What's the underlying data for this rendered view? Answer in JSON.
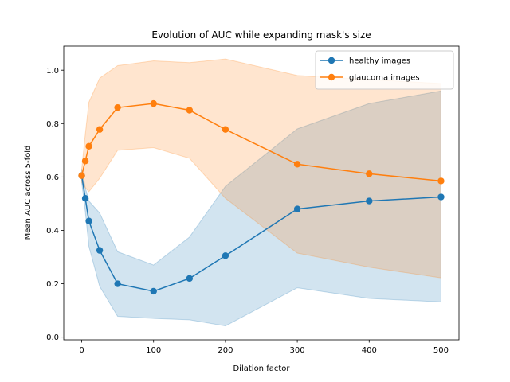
{
  "chart_data": {
    "type": "line",
    "title": "Evolution of AUC while expanding mask's size",
    "xlabel": "Dilation factor",
    "ylabel": "Mean AUC across 5-fold",
    "xlim": [
      -25,
      525
    ],
    "ylim": [
      -0.01,
      1.09
    ],
    "xticks": [
      0,
      100,
      200,
      300,
      400,
      500
    ],
    "yticks": [
      0.0,
      0.2,
      0.4,
      0.6,
      0.8,
      1.0
    ],
    "xtick_labels": [
      "0",
      "100",
      "200",
      "300",
      "400",
      "500"
    ],
    "ytick_labels": [
      "0.0",
      "0.2",
      "0.4",
      "0.6",
      "0.8",
      "1.0"
    ],
    "grid": false,
    "legend_position": "top-right",
    "x": [
      0,
      5,
      10,
      25,
      50,
      100,
      150,
      200,
      300,
      400,
      500
    ],
    "series": [
      {
        "name": "healthy images",
        "color": "#1f77b4",
        "values": [
          0.605,
          0.52,
          0.435,
          0.325,
          0.2,
          0.172,
          0.22,
          0.305,
          0.48,
          0.51,
          0.525
        ],
        "lower": [
          0.58,
          0.47,
          0.34,
          0.19,
          0.078,
          0.07,
          0.065,
          0.042,
          0.185,
          0.145,
          0.132
        ],
        "upper": [
          0.63,
          0.56,
          0.51,
          0.465,
          0.32,
          0.27,
          0.375,
          0.565,
          0.78,
          0.875,
          0.922
        ]
      },
      {
        "name": "glaucoma images",
        "color": "#ff7f0e",
        "values": [
          0.605,
          0.66,
          0.715,
          0.778,
          0.86,
          0.875,
          0.85,
          0.778,
          0.648,
          0.612,
          0.585
        ],
        "lower": [
          0.58,
          0.56,
          0.545,
          0.595,
          0.7,
          0.71,
          0.67,
          0.52,
          0.315,
          0.262,
          0.222
        ],
        "upper": [
          0.63,
          0.76,
          0.88,
          0.97,
          1.017,
          1.035,
          1.028,
          1.042,
          0.98,
          0.965,
          0.95
        ]
      }
    ]
  }
}
